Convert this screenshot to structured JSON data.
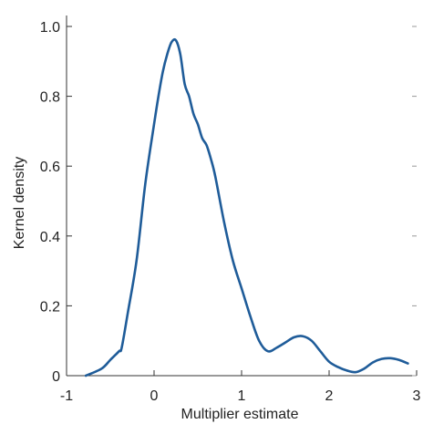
{
  "chart_data": {
    "type": "line",
    "title": "",
    "xlabel": "Multiplier estimate",
    "ylabel": "Kernel density",
    "xlim": [
      -1,
      3
    ],
    "ylim": [
      0,
      1.0
    ],
    "xticks": [
      -1,
      0,
      1,
      2,
      3
    ],
    "xtick_labels": [
      "-1",
      "0",
      "1",
      "2",
      "3"
    ],
    "yticks": [
      0,
      0.2,
      0.4,
      0.6,
      0.8,
      1.0
    ],
    "ytick_labels": [
      "0",
      "0.2",
      "0.4",
      "0.6",
      "0.8",
      "1.0"
    ],
    "grid": false,
    "legend": "none",
    "series_color": "#1f5c99",
    "series": [
      {
        "x": [
          -0.78,
          -0.6,
          -0.5,
          -0.4,
          -0.37,
          -0.3,
          -0.2,
          -0.1,
          0.0,
          0.05,
          0.1,
          0.15,
          0.2,
          0.25,
          0.3,
          0.35,
          0.4,
          0.45,
          0.5,
          0.55,
          0.6,
          0.65,
          0.7,
          0.8,
          0.9,
          1.0,
          1.1,
          1.2,
          1.3,
          1.4,
          1.5,
          1.6,
          1.7,
          1.8,
          1.9,
          2.0,
          2.1,
          2.2,
          2.3,
          2.4,
          2.5,
          2.6,
          2.7,
          2.8,
          2.9
        ],
        "y": [
          0.0,
          0.02,
          0.045,
          0.07,
          0.08,
          0.18,
          0.33,
          0.55,
          0.72,
          0.8,
          0.87,
          0.92,
          0.955,
          0.96,
          0.92,
          0.835,
          0.8,
          0.75,
          0.72,
          0.68,
          0.66,
          0.62,
          0.57,
          0.44,
          0.33,
          0.25,
          0.17,
          0.1,
          0.07,
          0.08,
          0.095,
          0.11,
          0.113,
          0.1,
          0.07,
          0.04,
          0.025,
          0.015,
          0.01,
          0.02,
          0.038,
          0.048,
          0.05,
          0.045,
          0.035
        ]
      }
    ]
  }
}
